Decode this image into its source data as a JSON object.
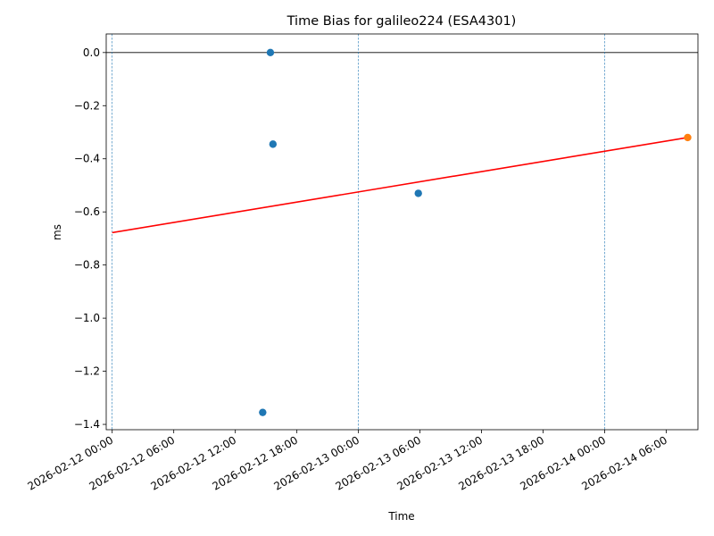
{
  "chart_data": {
    "type": "scatter",
    "title": "Time Bias for galileo224 (ESA4301)",
    "xlabel": "Time",
    "ylabel": "ms",
    "x_axis_type": "datetime",
    "xlim": [
      "2026-02-11 23:25",
      "2026-02-14 09:05"
    ],
    "ylim": [
      -1.42,
      0.07
    ],
    "x_ticks": [
      "2026-02-12 00:00",
      "2026-02-12 06:00",
      "2026-02-12 12:00",
      "2026-02-12 18:00",
      "2026-02-13 00:00",
      "2026-02-13 06:00",
      "2026-02-13 12:00",
      "2026-02-13 18:00",
      "2026-02-14 00:00",
      "2026-02-14 06:00"
    ],
    "y_ticks": [
      0.0,
      -0.2,
      -0.4,
      -0.6,
      -0.8,
      -1.0,
      -1.2,
      -1.4
    ],
    "y_tick_labels": [
      "0.0",
      "−0.2",
      "−0.4",
      "−0.6",
      "−0.8",
      "−1.0",
      "−1.2",
      "−1.4"
    ],
    "series": [
      {
        "kind": "scatter",
        "color": "#1f77b4",
        "points": [
          {
            "x": "2026-02-12 14:40",
            "y": -1.355
          },
          {
            "x": "2026-02-12 15:25",
            "y": 0.0
          },
          {
            "x": "2026-02-12 15:40",
            "y": -0.345
          },
          {
            "x": "2026-02-13 05:50",
            "y": -0.53
          }
        ]
      },
      {
        "kind": "scatter",
        "color": "#ff7f0e",
        "points": [
          {
            "x": "2026-02-14 08:05",
            "y": -0.32
          }
        ]
      },
      {
        "kind": "line",
        "color": "#ff0000",
        "points": [
          {
            "x": "2026-02-12 00:00",
            "y": -0.678
          },
          {
            "x": "2026-02-14 08:05",
            "y": -0.32
          }
        ]
      }
    ],
    "reference_lines": {
      "horizontal_y": 0.0,
      "horizontal_color": "#000000",
      "vertical_x": [
        "2026-02-12 00:00",
        "2026-02-13 00:00",
        "2026-02-14 00:00"
      ],
      "vertical_color": "#1f77b4",
      "vertical_style": "dashed"
    },
    "grid": false,
    "legend": "none"
  }
}
